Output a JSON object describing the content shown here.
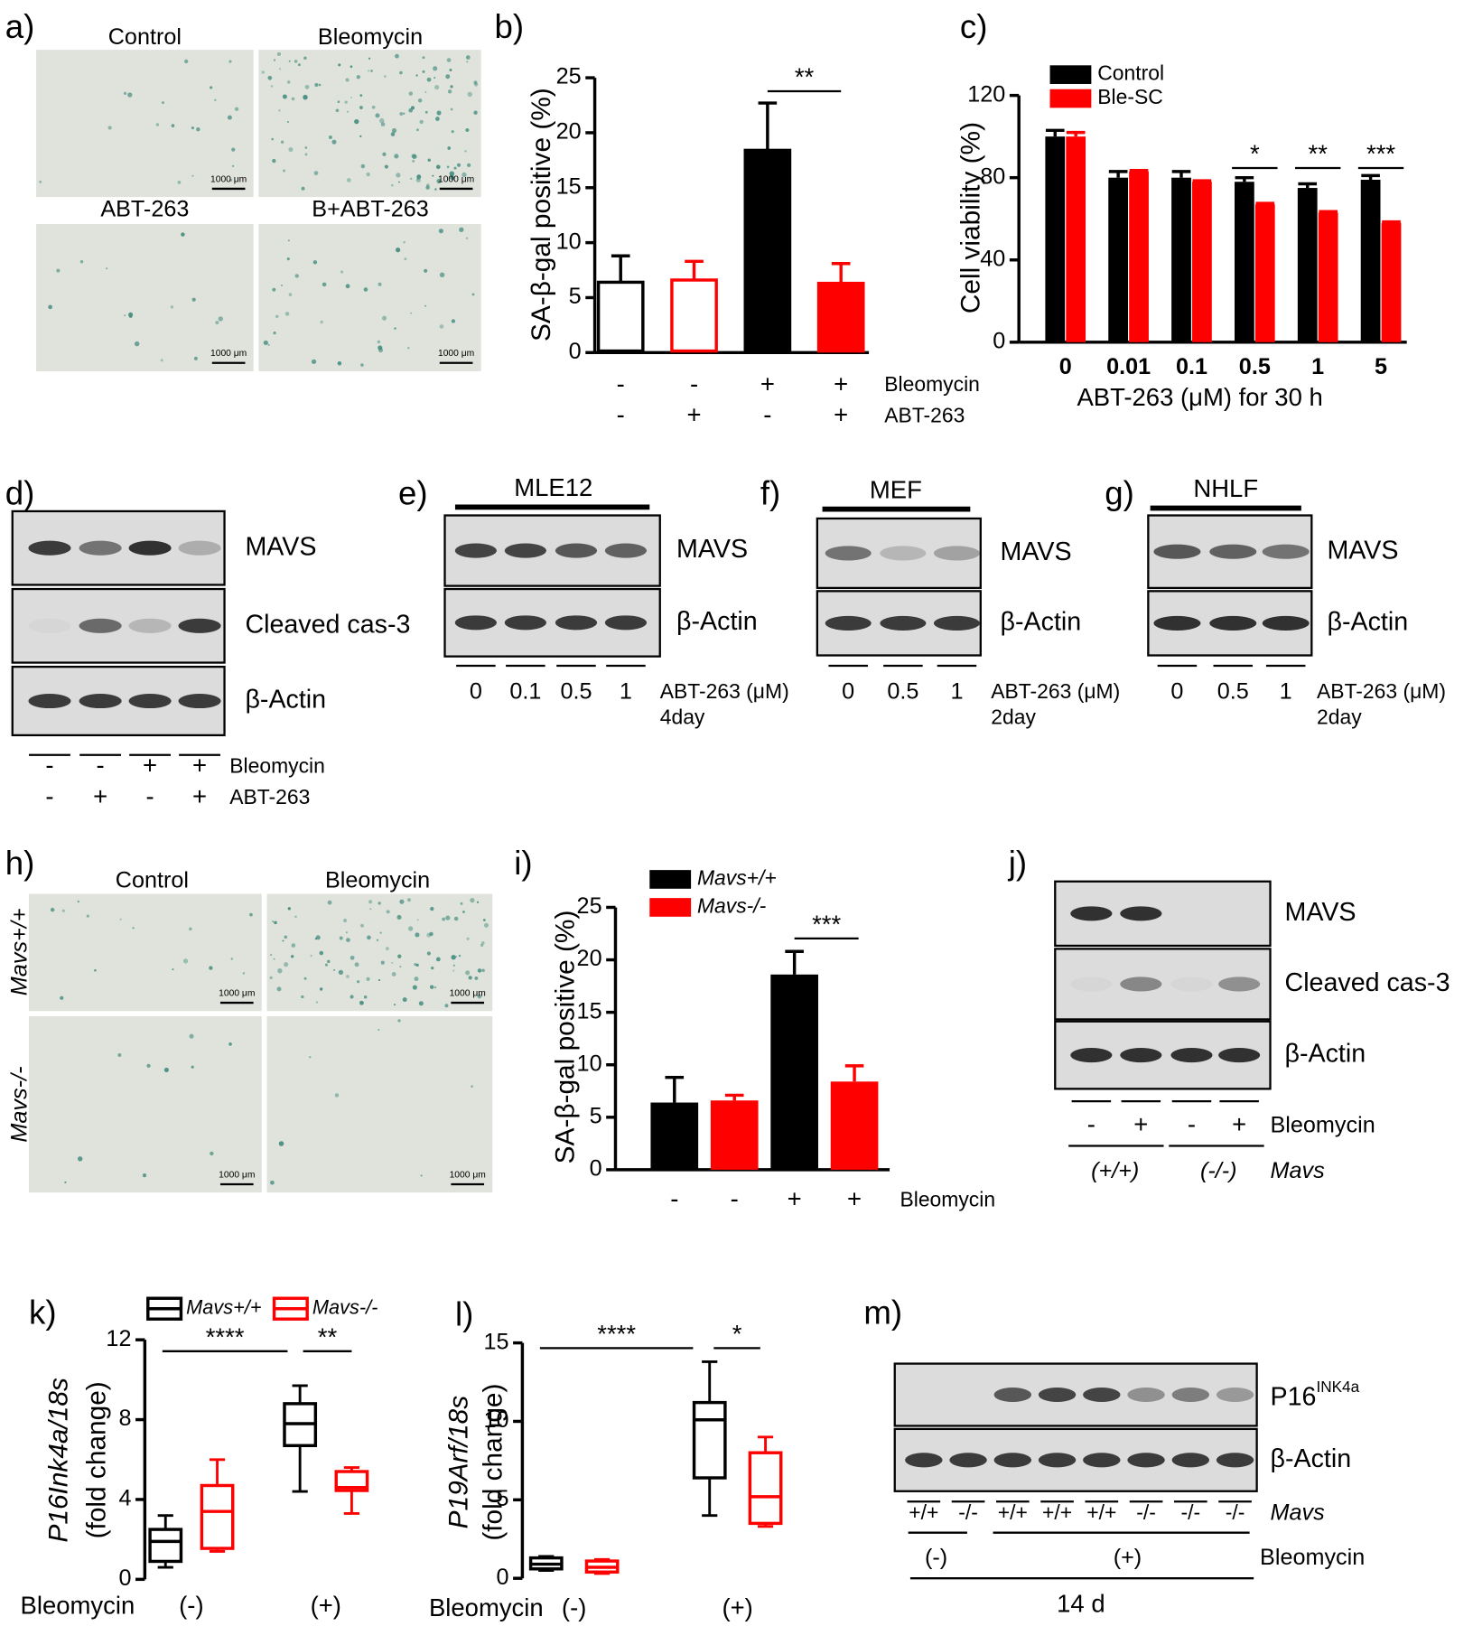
{
  "panel_labels": [
    "a)",
    "b)",
    "c)",
    "d)",
    "e)",
    "f)",
    "g)",
    "h)",
    "i)",
    "j)",
    "k)",
    "l)",
    "m)"
  ],
  "panel_a": {
    "titles": [
      "Control",
      "Bleomycin",
      "ABT-263",
      "B+ABT-263"
    ],
    "scale_bar": "1000 μm"
  },
  "panel_d": {
    "rows": [
      "MAVS",
      "Cleaved cas-3",
      "β-Actin"
    ],
    "treatments": [
      {
        "name": "Bleomycin",
        "signs": [
          "-",
          "-",
          "+",
          "+"
        ]
      },
      {
        "name": "ABT-263",
        "signs": [
          "-",
          "+",
          "-",
          "+"
        ]
      }
    ]
  },
  "panel_e": {
    "cell_line": "MLE12",
    "rows": [
      "MAVS",
      "β-Actin"
    ],
    "doses": [
      "0",
      "0.1",
      "0.5",
      "1"
    ],
    "dose_label": "ABT-263  (μM)",
    "duration": "4day"
  },
  "panel_f": {
    "cell_line": "MEF",
    "rows": [
      "MAVS",
      "β-Actin"
    ],
    "doses": [
      "0",
      "0.5",
      "1"
    ],
    "dose_label": "ABT-263  (μM)",
    "duration": "2day"
  },
  "panel_g": {
    "cell_line": "NHLF",
    "rows": [
      "MAVS",
      "β-Actin"
    ],
    "doses": [
      "0",
      "0.5",
      "1"
    ],
    "dose_label": "ABT-263  (μM)",
    "duration": "2day"
  },
  "panel_h": {
    "columns": [
      "Control",
      "Bleomycin"
    ],
    "rows": [
      "Mavs+/+",
      "Mavs-/-"
    ],
    "scale_bar": "1000 μm"
  },
  "panel_j": {
    "rows": [
      "MAVS",
      "Cleaved cas-3",
      "β-Actin"
    ],
    "signs": [
      "-",
      "+",
      "-",
      "+"
    ],
    "treatment": "Bleomycin",
    "genotypes": [
      "(+/+)",
      "(-/-)"
    ],
    "genotype_label": "Mavs"
  },
  "panel_m": {
    "rows": [
      "P16",
      "β-Actin"
    ],
    "superscript": "INK4a",
    "genotypes": [
      "+/+",
      "-/-",
      "+/+",
      "+/+",
      "+/+",
      "-/-",
      "-/-",
      "-/-"
    ],
    "genotype_label": "Mavs",
    "groups": [
      "(-)",
      "(+)"
    ],
    "treatment": "Bleomycin",
    "time": "14 d"
  },
  "chart_data": [
    {
      "type": "bar",
      "y_label": "SA-β-gal positive (%)",
      "ylim": [
        0,
        25
      ],
      "yticks": [
        0,
        5,
        10,
        15,
        20,
        25
      ],
      "values": [
        6.4,
        6.6,
        18.4,
        6.3
      ],
      "errors": [
        2.4,
        1.7,
        4.3,
        1.8
      ],
      "colors": [
        "#000000",
        "#ff0000",
        "#000000",
        "#ff0000"
      ],
      "filled": [
        false,
        false,
        true,
        true
      ],
      "rows": [
        {
          "name": "Bleomycin",
          "signs": [
            "-",
            "-",
            "+",
            "+"
          ]
        },
        {
          "name": "ABT-263",
          "signs": [
            "-",
            "+",
            "-",
            "+"
          ]
        }
      ],
      "annotations": [
        "**"
      ]
    },
    {
      "type": "grouped-bar",
      "y_label": "Cell viability (%)",
      "x_label": "ABT-263 (μM) for 30 h",
      "categories": [
        "0",
        "0.01",
        "0.1",
        "0.5",
        "1",
        "5"
      ],
      "ylim": [
        0,
        120
      ],
      "yticks": [
        0,
        40,
        80,
        120
      ],
      "series": [
        {
          "name": "Control",
          "color": "#000000",
          "values": [
            100,
            80,
            80,
            78,
            75,
            79
          ],
          "errors": [
            3,
            3,
            3,
            2,
            2,
            2
          ]
        },
        {
          "name": "Ble-SC",
          "color": "#ff0000",
          "values": [
            100,
            83,
            78,
            67,
            63,
            58
          ],
          "errors": [
            2,
            0.5,
            0.5,
            0.5,
            0.5,
            0.5
          ]
        }
      ],
      "annotations": [
        "*",
        "**",
        "***"
      ]
    },
    {
      "type": "grouped-bar",
      "y_label": "SA-β-gal positive (%)",
      "ylim": [
        0,
        25
      ],
      "yticks": [
        0,
        5,
        10,
        15,
        20,
        25
      ],
      "series": [
        {
          "name": "Mavs+/+",
          "color": "#000000",
          "values": [
            6.4,
            18.6
          ],
          "errors": [
            2.4,
            2.2
          ]
        },
        {
          "name": "Mavs-/-",
          "color": "#ff0000",
          "values": [
            6.6,
            8.4
          ],
          "errors": [
            0.5,
            1.5
          ]
        }
      ],
      "treatment_signs": [
        "-",
        "-",
        "+",
        "+"
      ],
      "treatment": "Bleomycin",
      "annotations": [
        "***"
      ]
    },
    {
      "type": "box",
      "y_label": "P16Ink4a/18s",
      "y_label_2": "(fold change)",
      "x_label": "Bleomycin",
      "categories": [
        "(-)",
        "(+)"
      ],
      "ylim": [
        0,
        12
      ],
      "yticks": [
        0,
        4,
        8,
        12
      ],
      "series": [
        {
          "name": "Mavs+/+",
          "color": "#000000",
          "boxes": [
            {
              "min": 0.6,
              "q1": 0.9,
              "median": 1.9,
              "q3": 2.5,
              "max": 3.2
            },
            {
              "min": 4.4,
              "q1": 6.7,
              "median": 7.8,
              "q3": 8.8,
              "max": 9.7
            }
          ]
        },
        {
          "name": "Mavs-/-",
          "color": "#ff0000",
          "boxes": [
            {
              "min": 1.4,
              "q1": 1.55,
              "median": 3.4,
              "q3": 4.7,
              "max": 6.0
            },
            {
              "min": 3.3,
              "q1": 4.45,
              "median": 4.6,
              "q3": 5.4,
              "max": 5.6
            }
          ]
        }
      ],
      "annotations": [
        "****",
        "**"
      ]
    },
    {
      "type": "box",
      "y_label": "P19Arf/18s",
      "y_label_2": "(fold change)",
      "x_label": "Bleomycin",
      "categories": [
        "(-)",
        "(+)"
      ],
      "ylim": [
        0,
        15
      ],
      "yticks": [
        0,
        5,
        10,
        15
      ],
      "series": [
        {
          "color": "#000000",
          "boxes": [
            {
              "min": 0.5,
              "q1": 0.6,
              "median": 0.9,
              "q3": 1.3,
              "max": 1.4
            },
            {
              "min": 4.0,
              "q1": 6.4,
              "median": 10.1,
              "q3": 11.2,
              "max": 13.8
            }
          ]
        },
        {
          "color": "#ff0000",
          "boxes": [
            {
              "min": 0.3,
              "q1": 0.4,
              "median": 0.7,
              "q3": 1.1,
              "max": 1.2
            },
            {
              "min": 3.3,
              "q1": 3.5,
              "median": 5.2,
              "q3": 8.0,
              "max": 9.0
            }
          ]
        }
      ],
      "annotations": [
        "****",
        "*"
      ]
    }
  ]
}
